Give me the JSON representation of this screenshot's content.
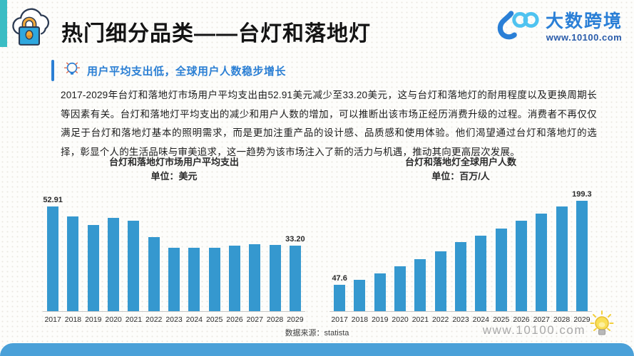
{
  "header": {
    "title": "热门细分品类——台灯和落地灯",
    "brand_name": "大数跨境",
    "brand_url": "www.10100.com"
  },
  "insight": {
    "headline": "用户平均支出低，全球用户人数稳步增长"
  },
  "body_text": "2017-2029年台灯和落地灯市场用户平均支出由52.91美元减少至33.20美元，这与台灯和落地灯的耐用程度以及更换周期长等因素有关。台灯和落地灯平均支出的减少和用户人数的增加，可以推断出该市场正经历消费升级的过程。消费者不再仅仅满足于台灯和落地灯基本的照明需求，而是更加注重产品的设计感、品质感和使用体验。他们渴望通过台灯和落地灯的选择，彰显个人的生活品味与审美追求，这一趋势为该市场注入了新的活力与机遇，推动其向更高层次发展。",
  "footer": {
    "source": "数据来源：statista",
    "site_url": "www.10100.com"
  },
  "colors": {
    "bar_blue": "#3598cf",
    "accent_blue": "#2b7fd4",
    "footer_blue": "#4aa0d8",
    "teal_stripe": "#3bbdc4",
    "brand_dark_blue": "#2a7fd6",
    "brand_light_blue": "#4fc3f0",
    "lock_orange": "#f2a93b",
    "bulb_yellow": "#f7d33d"
  },
  "icons": [
    "cloud-lock-icon",
    "brand-logo-mark",
    "lightbulb-blue-icon",
    "lightbulb-yellow-icon"
  ],
  "chart_data": [
    {
      "type": "bar",
      "title": "台灯和落地灯市场用户平均支出",
      "unit_label": "单位：美元",
      "xlabel": "",
      "ylabel": "美元",
      "ylim": [
        0,
        55
      ],
      "legend": "none",
      "grid": false,
      "categories": [
        "2017",
        "2018",
        "2019",
        "2020",
        "2021",
        "2022",
        "2023",
        "2024",
        "2025",
        "2026",
        "2027",
        "2028",
        "2029"
      ],
      "values": [
        52.91,
        47.8,
        43.7,
        47.2,
        45.6,
        37.4,
        32.1,
        31.9,
        32.1,
        33.0,
        33.7,
        33.6,
        33.2
      ],
      "value_labels": {
        "0": "52.91",
        "12": "33.20"
      }
    },
    {
      "type": "bar",
      "title": "台灯和落地灯全球用户人数",
      "unit_label": "单位：百万/人",
      "xlabel": "",
      "ylabel": "百万/人",
      "ylim": [
        0,
        210
      ],
      "legend": "none",
      "grid": false,
      "categories": [
        "2017",
        "2018",
        "2019",
        "2020",
        "2021",
        "2022",
        "2023",
        "2024",
        "2025",
        "2026",
        "2027",
        "2028",
        "2029"
      ],
      "values": [
        47.6,
        57.0,
        68.5,
        80.5,
        94.2,
        108.0,
        124.6,
        136.1,
        149.8,
        163.9,
        176.8,
        189.2,
        199.3
      ],
      "value_labels": {
        "0": "47.6",
        "12": "199.3"
      }
    }
  ]
}
